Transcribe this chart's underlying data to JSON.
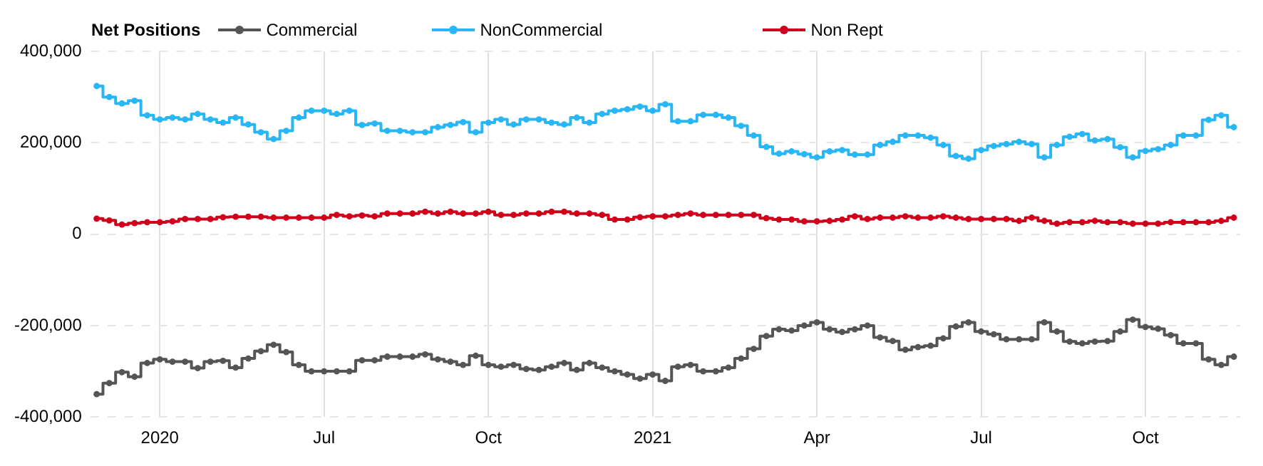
{
  "chart_data": {
    "type": "step",
    "legend_title": "Net Positions",
    "legend": "top left",
    "grid": true,
    "marker": "circle",
    "categories": [
      null,
      null,
      null,
      null,
      null,
      "2020",
      null,
      null,
      null,
      null,
      null,
      null,
      null,
      null,
      null,
      null,
      null,
      null,
      "Jul",
      null,
      null,
      null,
      null,
      null,
      null,
      null,
      null,
      null,
      null,
      null,
      null,
      "Oct",
      null,
      null,
      null,
      null,
      null,
      null,
      null,
      null,
      null,
      null,
      null,
      null,
      "2021",
      null,
      null,
      null,
      null,
      null,
      null,
      null,
      null,
      null,
      null,
      null,
      null,
      "Apr",
      null,
      null,
      null,
      null,
      null,
      null,
      null,
      null,
      null,
      null,
      null,
      null,
      "Jul",
      null,
      null,
      null,
      null,
      null,
      null,
      null,
      null,
      null,
      null,
      null,
      null,
      "Oct",
      null,
      null,
      null,
      null,
      null,
      null,
      null
    ],
    "ylim": [
      -400000,
      400000
    ],
    "yticks": [
      {
        "value": -400000,
        "label": "-400,000"
      },
      {
        "value": -200000,
        "label": "-200,000"
      },
      0,
      {
        "value": 200000,
        "label": "200,000"
      },
      {
        "value": 400000,
        "label": "400,000"
      }
    ],
    "series": [
      {
        "name": "Commercial",
        "color": "#555555",
        "values": [
          -350000,
          -326000,
          -302000,
          -312000,
          -282000,
          -274000,
          -279000,
          -279000,
          -293000,
          -279000,
          -277000,
          -292000,
          -272000,
          -256000,
          -242000,
          -258000,
          -286000,
          -300000,
          -300000,
          -300000,
          -300000,
          -276000,
          -276000,
          -268000,
          -268000,
          -268000,
          -263000,
          -274000,
          -279000,
          -286000,
          -266000,
          -286000,
          -290000,
          -286000,
          -295000,
          -297000,
          -290000,
          -282000,
          -297000,
          -282000,
          -292000,
          -300000,
          -307000,
          -316000,
          -307000,
          -321000,
          -290000,
          -286000,
          -300000,
          -300000,
          -292000,
          -272000,
          -251000,
          -223000,
          -208000,
          -211000,
          -200000,
          -193000,
          -208000,
          -214000,
          -208000,
          -200000,
          -226000,
          -234000,
          -253000,
          -247000,
          -244000,
          -228000,
          -202000,
          -193000,
          -213000,
          -219000,
          -230000,
          -230000,
          -230000,
          -193000,
          -213000,
          -235000,
          -239000,
          -235000,
          -234000,
          -213000,
          -187000,
          -203000,
          -207000,
          -221000,
          -239000,
          -239000,
          -274000,
          -286000,
          -268000
        ]
      },
      {
        "name": "NonCommercial",
        "color": "#29b6f6",
        "values": [
          324000,
          300000,
          286000,
          292000,
          260000,
          251000,
          255000,
          251000,
          263000,
          251000,
          244000,
          255000,
          240000,
          223000,
          208000,
          226000,
          255000,
          270000,
          270000,
          263000,
          270000,
          239000,
          242000,
          226000,
          226000,
          223000,
          223000,
          234000,
          239000,
          245000,
          223000,
          244000,
          251000,
          240000,
          251000,
          251000,
          244000,
          240000,
          255000,
          244000,
          263000,
          270000,
          273000,
          279000,
          270000,
          284000,
          247000,
          247000,
          261000,
          261000,
          255000,
          237000,
          216000,
          191000,
          176000,
          181000,
          175000,
          168000,
          181000,
          184000,
          174000,
          174000,
          195000,
          202000,
          216000,
          216000,
          211000,
          195000,
          171000,
          165000,
          184000,
          193000,
          197000,
          202000,
          197000,
          168000,
          195000,
          213000,
          219000,
          205000,
          208000,
          190000,
          168000,
          182000,
          186000,
          195000,
          216000,
          216000,
          250000,
          260000,
          234000
        ]
      },
      {
        "name": "Non Rept",
        "color": "#d0021b",
        "values": [
          34000,
          30000,
          21000,
          24000,
          26000,
          26000,
          28000,
          33000,
          33000,
          33000,
          37000,
          38000,
          38000,
          38000,
          36000,
          36000,
          36000,
          36000,
          36000,
          42000,
          39000,
          41000,
          39000,
          45000,
          45000,
          45000,
          49000,
          45000,
          49000,
          45000,
          45000,
          49000,
          42000,
          42000,
          45000,
          45000,
          49000,
          49000,
          45000,
          45000,
          42000,
          32000,
          32000,
          37000,
          39000,
          39000,
          42000,
          45000,
          42000,
          42000,
          42000,
          42000,
          42000,
          35000,
          32000,
          32000,
          28000,
          28000,
          29000,
          32000,
          39000,
          33000,
          36000,
          36000,
          39000,
          36000,
          36000,
          39000,
          36000,
          33000,
          33000,
          33000,
          33000,
          29000,
          36000,
          29000,
          23000,
          26000,
          26000,
          29000,
          26000,
          26000,
          23000,
          23000,
          23000,
          26000,
          26000,
          26000,
          26000,
          29000,
          36000
        ]
      }
    ]
  }
}
